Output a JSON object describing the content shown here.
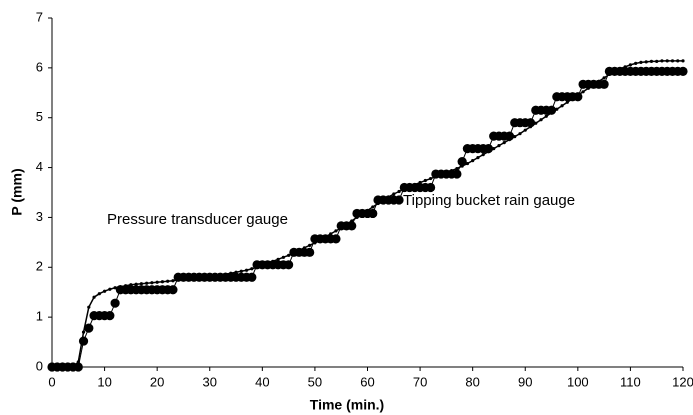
{
  "chart_data": {
    "type": "line",
    "xlabel": "Time (min.)",
    "ylabel": "P (mm)",
    "annotations": [
      "Pressure transducer gauge",
      "Tipping bucket rain gauge"
    ],
    "xlim": [
      0,
      120
    ],
    "xticks": [
      0,
      10,
      20,
      30,
      40,
      50,
      60,
      70,
      80,
      90,
      100,
      110,
      120
    ],
    "ylim": [
      0,
      7
    ],
    "yticks": [
      0,
      1,
      2,
      3,
      4,
      5,
      6,
      7
    ],
    "x": [
      0,
      1,
      2,
      3,
      4,
      5,
      6,
      7,
      8,
      9,
      10,
      11,
      12,
      13,
      14,
      15,
      16,
      17,
      18,
      19,
      20,
      21,
      22,
      23,
      24,
      25,
      26,
      27,
      28,
      29,
      30,
      31,
      32,
      33,
      34,
      35,
      36,
      37,
      38,
      39,
      40,
      41,
      42,
      43,
      44,
      45,
      46,
      47,
      48,
      49,
      50,
      51,
      52,
      53,
      54,
      55,
      56,
      57,
      58,
      59,
      60,
      61,
      62,
      63,
      64,
      65,
      66,
      67,
      68,
      69,
      70,
      71,
      72,
      73,
      74,
      75,
      76,
      77,
      78,
      79,
      80,
      81,
      82,
      83,
      84,
      85,
      86,
      87,
      88,
      89,
      90,
      91,
      92,
      93,
      94,
      95,
      96,
      97,
      98,
      99,
      100,
      101,
      102,
      103,
      104,
      105,
      106,
      107,
      108,
      109,
      110,
      111,
      112,
      113,
      114,
      115,
      116,
      117,
      118,
      119,
      120
    ],
    "series": [
      {
        "color": "#000000",
        "marker": "small",
        "values": [
          0,
          0,
          0,
          0,
          0,
          0.1,
          0.7,
          1.2,
          1.4,
          1.47,
          1.52,
          1.56,
          1.59,
          1.61,
          1.63,
          1.65,
          1.66,
          1.67,
          1.68,
          1.69,
          1.7,
          1.71,
          1.72,
          1.73,
          1.75,
          1.76,
          1.77,
          1.79,
          1.8,
          1.81,
          1.83,
          1.84,
          1.85,
          1.86,
          1.88,
          1.9,
          1.92,
          1.94,
          1.97,
          2.0,
          2.04,
          2.08,
          2.12,
          2.16,
          2.2,
          2.24,
          2.29,
          2.34,
          2.39,
          2.44,
          2.49,
          2.55,
          2.61,
          2.67,
          2.73,
          2.79,
          2.86,
          2.93,
          3.0,
          3.07,
          3.14,
          3.21,
          3.28,
          3.35,
          3.41,
          3.47,
          3.52,
          3.57,
          3.62,
          3.66,
          3.7,
          3.74,
          3.78,
          3.82,
          3.86,
          3.9,
          3.94,
          3.98,
          4.03,
          4.08,
          4.14,
          4.2,
          4.26,
          4.32,
          4.38,
          4.44,
          4.5,
          4.56,
          4.62,
          4.68,
          4.75,
          4.82,
          4.89,
          4.96,
          5.03,
          5.1,
          5.17,
          5.24,
          5.31,
          5.38,
          5.45,
          5.52,
          5.59,
          5.66,
          5.73,
          5.8,
          5.87,
          5.93,
          5.98,
          6.02,
          6.06,
          6.09,
          6.11,
          6.12,
          6.13,
          6.13,
          6.14,
          6.14,
          6.14,
          6.14,
          6.14
        ]
      },
      {
        "color": "#000000",
        "marker": "large",
        "values": [
          0,
          0,
          0,
          0,
          0,
          0,
          0.52,
          0.78,
          1.03,
          1.03,
          1.03,
          1.03,
          1.28,
          1.55,
          1.55,
          1.55,
          1.55,
          1.55,
          1.55,
          1.55,
          1.55,
          1.55,
          1.55,
          1.55,
          1.8,
          1.8,
          1.8,
          1.8,
          1.8,
          1.8,
          1.8,
          1.8,
          1.8,
          1.8,
          1.8,
          1.8,
          1.8,
          1.8,
          1.8,
          2.05,
          2.05,
          2.05,
          2.05,
          2.05,
          2.05,
          2.05,
          2.3,
          2.3,
          2.3,
          2.3,
          2.57,
          2.57,
          2.57,
          2.57,
          2.57,
          2.83,
          2.83,
          2.83,
          3.08,
          3.08,
          3.08,
          3.08,
          3.35,
          3.35,
          3.35,
          3.35,
          3.35,
          3.6,
          3.6,
          3.6,
          3.6,
          3.6,
          3.6,
          3.87,
          3.87,
          3.87,
          3.87,
          3.87,
          4.12,
          4.38,
          4.38,
          4.38,
          4.38,
          4.38,
          4.63,
          4.63,
          4.63,
          4.63,
          4.9,
          4.9,
          4.9,
          4.9,
          5.15,
          5.15,
          5.15,
          5.15,
          5.42,
          5.42,
          5.42,
          5.42,
          5.42,
          5.67,
          5.67,
          5.67,
          5.67,
          5.67,
          5.93,
          5.93,
          5.93,
          5.93,
          5.93,
          5.93,
          5.93,
          5.93,
          5.93,
          5.93,
          5.93,
          5.93,
          5.93,
          5.93,
          5.93
        ]
      }
    ]
  }
}
